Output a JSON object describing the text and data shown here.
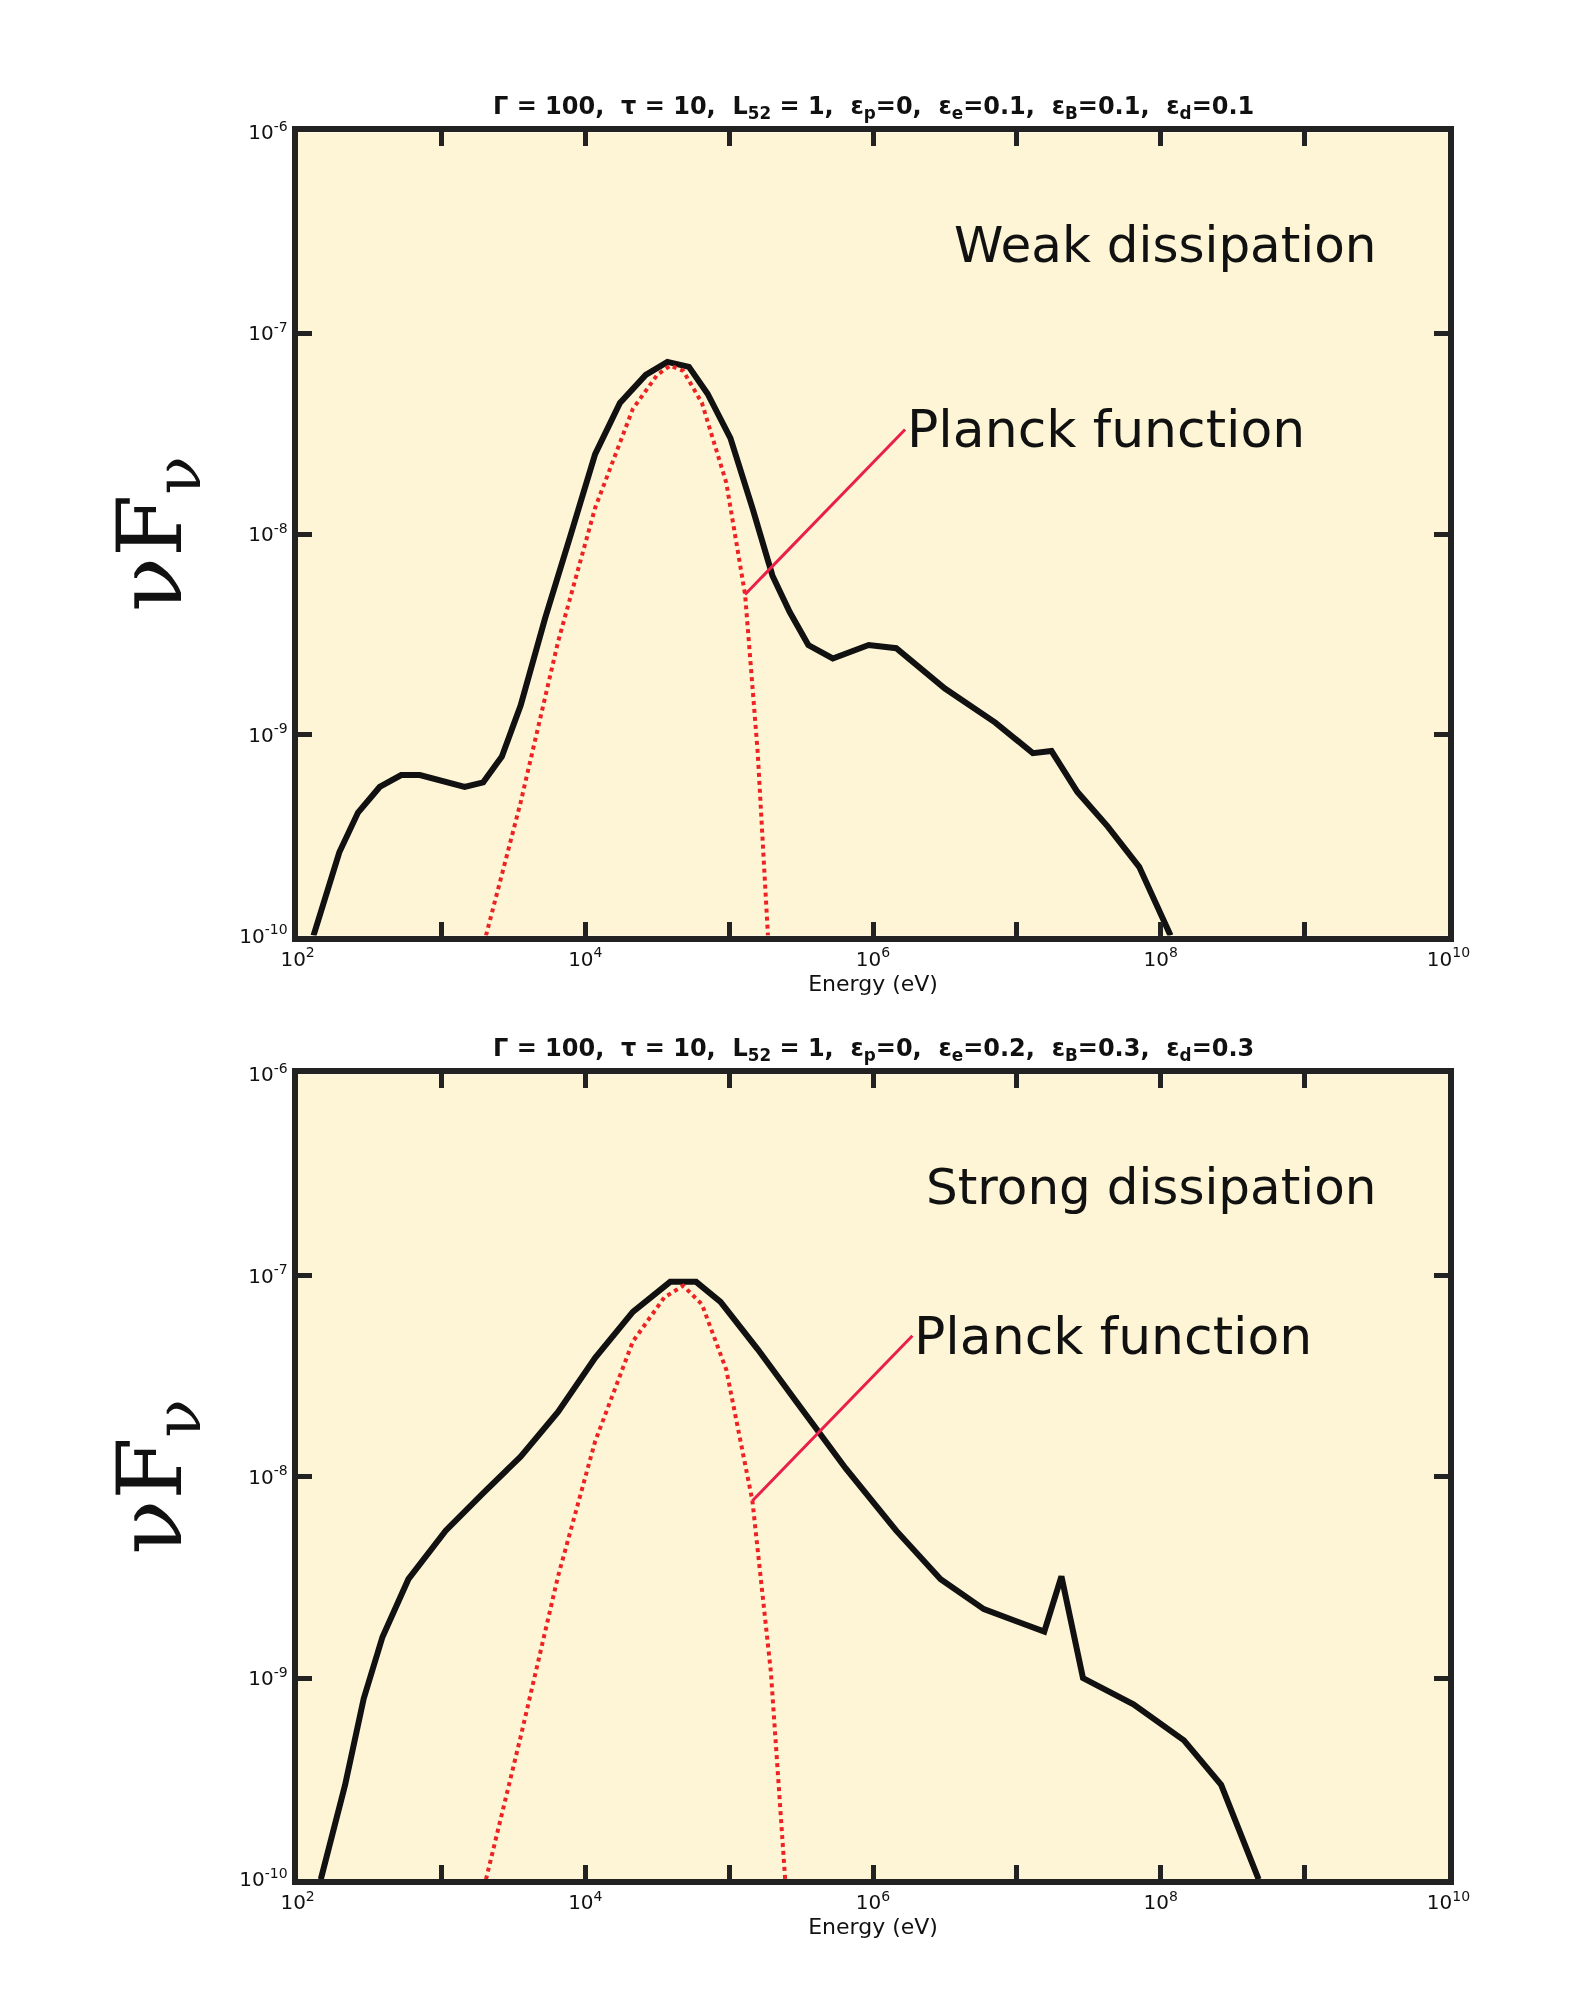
{
  "chart_data": [
    {
      "type": "line",
      "title": "Γ = 100,  τ = 10,  L$_{52}$ = 1,  ε$_{p}$=0,  ε$_{e}$=0.1,  ε$_{B}$=0.1,  ε$_{d}$=0.1",
      "xlabel": "Energy (eV)",
      "ylabel": "νF$_{ν}$",
      "log": "xy",
      "xlim": [
        100,
        10000000000
      ],
      "ylim": [
        1e-10,
        1e-06
      ],
      "xticks": [
        {
          "value": 100,
          "label": "10$^{2}$"
        },
        {
          "value": 1000,
          "label": null
        },
        {
          "value": 10000,
          "label": "10$^{4}$"
        },
        {
          "value": 100000,
          "label": null
        },
        {
          "value": 1000000,
          "label": "10$^{6}$"
        },
        {
          "value": 10000000,
          "label": null
        },
        {
          "value": 100000000,
          "label": "10$^{8}$"
        },
        {
          "value": 1000000000,
          "label": null
        },
        {
          "value": 10000000000,
          "label": "10$^{10}$"
        }
      ],
      "yticks": [
        {
          "value": 1e-10,
          "label": "10$^{-10}$"
        },
        {
          "value": 1e-09,
          "label": "10$^{-9}$"
        },
        {
          "value": 1e-08,
          "label": "10$^{-8}$"
        },
        {
          "value": 1e-07,
          "label": "10$^{-7}$"
        },
        {
          "value": 1e-06,
          "label": "10$^{-6}$"
        }
      ],
      "series": [
        {
          "color": "#111111",
          "line_style": "solid",
          "x": [
            129,
            195,
            263,
            372,
            525,
            708,
            1450,
            1950,
            2630,
            3550,
            5250,
            7940,
            11700,
            17400,
            26300,
            37200,
            52500,
            70800,
            102000,
            145000,
            200000,
            263000,
            355000,
            525000,
            933000,
            1450000,
            3160000,
            7080000,
            12900000,
            17400000,
            26300000,
            42700000,
            70800000,
            117000000
          ],
          "values": [
            1e-10,
            2.6e-10,
            4.1e-10,
            5.5e-10,
            6.3e-10,
            6.3e-10,
            5.5e-10,
            5.8e-10,
            7.8e-10,
            1.4e-09,
            3.8e-09,
            1e-08,
            2.5e-08,
            4.5e-08,
            6.2e-08,
            7.2e-08,
            6.8e-08,
            5e-08,
            3e-08,
            1.35e-08,
            6.2e-09,
            4.1e-09,
            2.8e-09,
            2.4e-09,
            2.8e-09,
            2.7e-09,
            1.7e-09,
            1.15e-09,
            8.1e-10,
            8.3e-10,
            5.2e-10,
            3.5e-10,
            2.2e-10,
            1e-10
          ]
        },
        {
          "color": "#ee2222",
          "line_style": "dotted",
          "x": [
            2040,
            3550,
            6460,
            11700,
            21400,
            31600,
            38900,
            47900,
            64600,
            95500,
            129000,
            158000,
            186000
          ],
          "values": [
            1e-10,
            4.6e-10,
            2.9e-09,
            1.35e-08,
            4.2e-08,
            6.2e-08,
            6.9e-08,
            6.5e-08,
            4.5e-08,
            1.8e-08,
            5e-09,
            8.1e-10,
            1e-10
          ]
        }
      ],
      "annotations": [
        "Weak dissipation",
        {
          "text": "Planck function",
          "x": 129000,
          "y": 5e-09
        }
      ]
    },
    {
      "type": "line",
      "title": "Γ = 100,  τ = 10,  L$_{52}$ = 1,  ε$_{p}$=0,  ε$_{e}$=0.2,  ε$_{B}$=0.3,  ε$_{d}$=0.3",
      "xlabel": "Energy (eV)",
      "ylabel": "νF$_{ν}$",
      "log": "xy",
      "xlim": [
        100,
        10000000000
      ],
      "ylim": [
        1e-10,
        1e-06
      ],
      "xticks": [
        {
          "value": 100,
          "label": "10$^{2}$"
        },
        {
          "value": 1000,
          "label": null
        },
        {
          "value": 10000,
          "label": "10$^{4}$"
        },
        {
          "value": 100000,
          "label": null
        },
        {
          "value": 1000000,
          "label": "10$^{6}$"
        },
        {
          "value": 10000000,
          "label": null
        },
        {
          "value": 100000000,
          "label": "10$^{8}$"
        },
        {
          "value": 1000000000,
          "label": null
        },
        {
          "value": 10000000000,
          "label": "10$^{10}$"
        }
      ],
      "yticks": [
        {
          "value": 1e-10,
          "label": "10$^{-10}$"
        },
        {
          "value": 1e-09,
          "label": "10$^{-9}$"
        },
        {
          "value": 1e-08,
          "label": "10$^{-8}$"
        },
        {
          "value": 1e-07,
          "label": "10$^{-7}$"
        },
        {
          "value": 1e-06,
          "label": "10$^{-6}$"
        }
      ],
      "series": [
        {
          "color": "#111111",
          "line_style": "solid",
          "x": [
            145,
            214,
            288,
            389,
            589,
            1070,
            1950,
            3550,
            6460,
            11700,
            21400,
            38900,
            58900,
            87100,
            158000,
            288000,
            646000,
            1450000,
            2950000,
            5890000,
            15500000,
            20400000,
            28800000,
            64600000,
            145000000,
            263000000,
            479000000
          ],
          "values": [
            1e-10,
            2.95e-10,
            7.9e-10,
            1.6e-09,
            3.1e-09,
            5.4e-09,
            8.3e-09,
            1.26e-08,
            2.1e-08,
            3.9e-08,
            6.6e-08,
            9.3e-08,
            9.3e-08,
            7.4e-08,
            4.3e-08,
            2.4e-08,
            1.1e-08,
            5.4e-09,
            3.1e-09,
            2.2e-09,
            1.7e-09,
            3.2e-09,
            1e-09,
            7.4e-10,
            4.9e-10,
            2.95e-10,
            1e-10
          ]
        },
        {
          "color": "#ee2222",
          "line_style": "dotted",
          "x": [
            2040,
            3550,
            6460,
            11700,
            21400,
            35500,
            47900,
            64600,
            95500,
            145000,
            195000,
            245000
          ],
          "values": [
            1e-10,
            5.1e-10,
            3.2e-09,
            1.5e-08,
            4.7e-08,
            7.8e-08,
            8.9e-08,
            7.2e-08,
            3.4e-08,
            7.6e-09,
            1.07e-09,
            1e-10
          ]
        }
      ],
      "annotations": [
        "Strong dissipation",
        {
          "text": "Planck function",
          "x": 145000,
          "y": 7.6e-09
        }
      ]
    }
  ]
}
